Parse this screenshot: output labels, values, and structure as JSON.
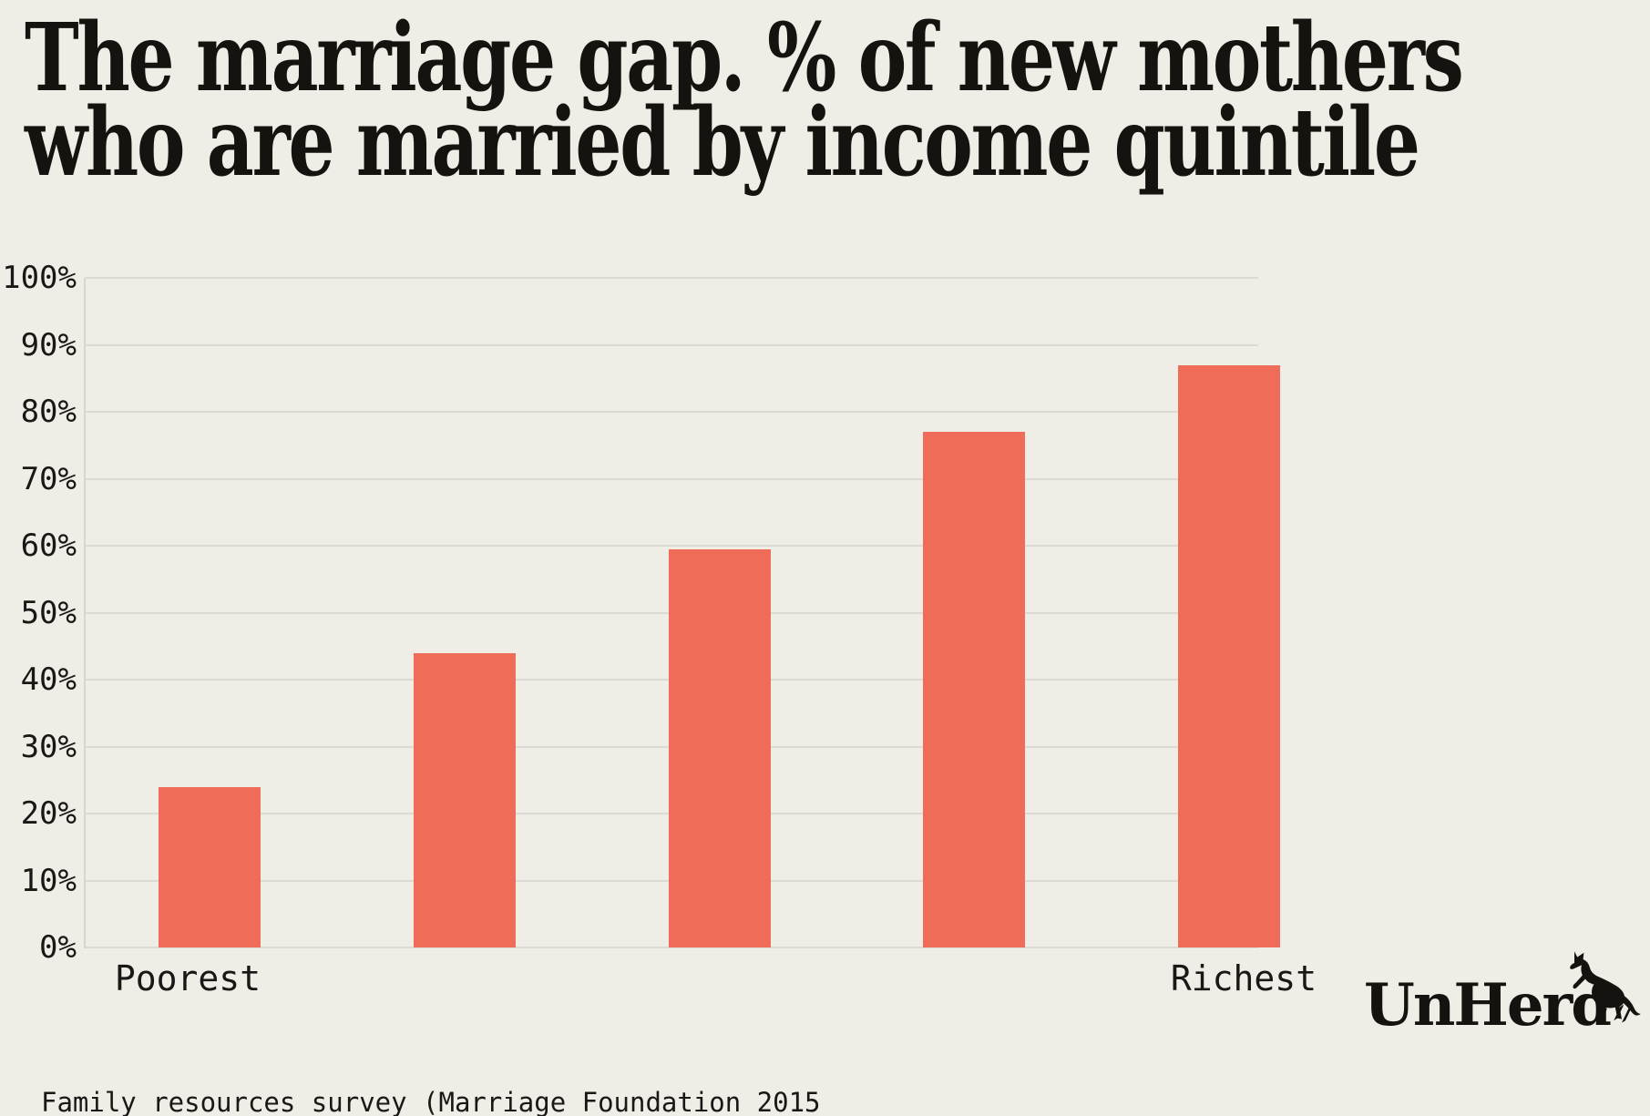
{
  "page": {
    "background_color": "#f0ede7",
    "text_color": "#1a1816"
  },
  "title": {
    "line1": "The marriage gap. % of new mothers",
    "line2": "who are married by income quintile"
  },
  "chart_data": {
    "type": "bar",
    "title": "The marriage gap. % of new mothers who are married by income quintile",
    "categories": [
      "Poorest",
      "",
      "",
      "",
      "Richest"
    ],
    "values": [
      24,
      44,
      59.5,
      77,
      87
    ],
    "xlabel": "",
    "ylabel": "",
    "ylim": [
      0,
      100
    ],
    "ytick_step": 10,
    "ytick_suffix": "%",
    "grid": "horizontal",
    "legend": "none",
    "bar_color": "#ef6c58",
    "gridline_color": "#dcdad4"
  },
  "source_note": "Family resources survey (Marriage Foundation 2015",
  "branding": {
    "wordmark": "UnHerd",
    "icon": "rearing-cow-icon"
  }
}
